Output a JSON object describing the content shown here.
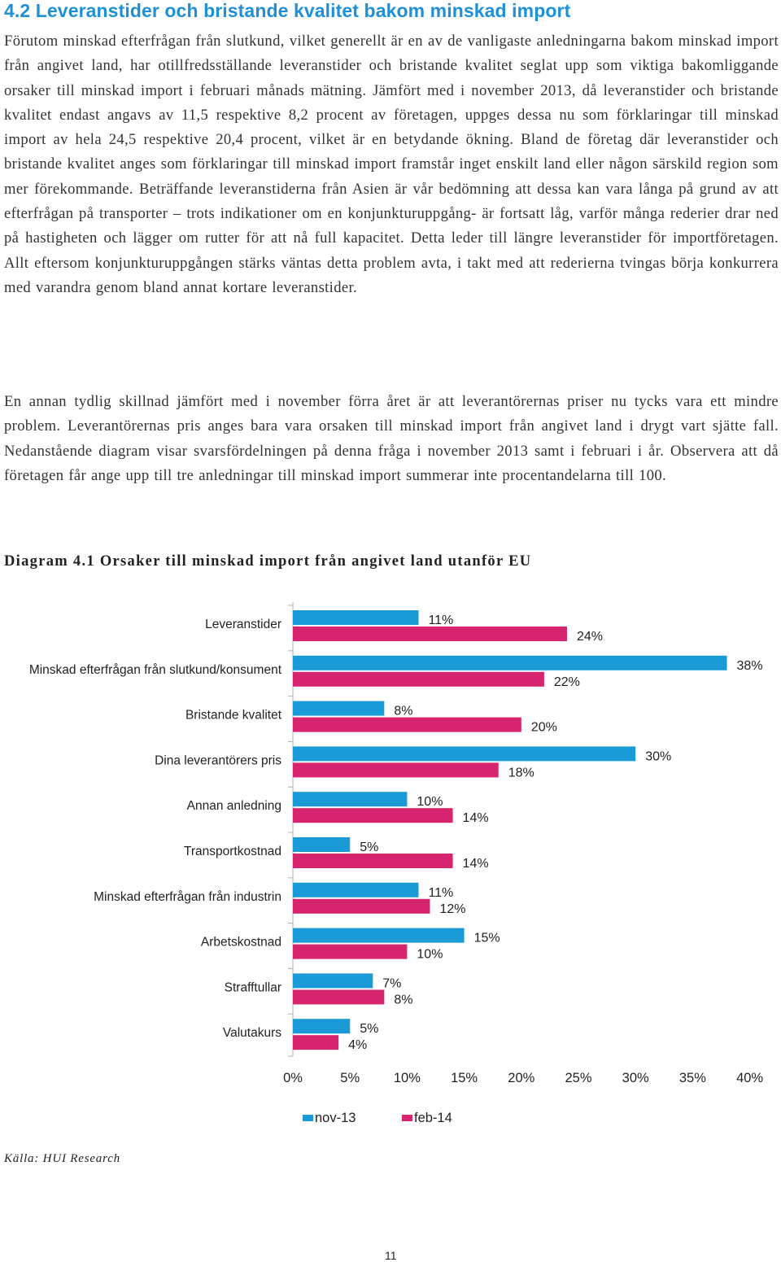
{
  "section": {
    "heading": "4.2 Leveranstider och bristande kvalitet bakom minskad import",
    "paragraphs": [
      "Förutom minskad efterfrågan från slutkund, vilket generellt är en av de vanligaste anledningarna bakom minskad import från angivet land, har otillfredsställande leveranstider och bristande kvalitet seglat upp som viktiga bakomliggande orsaker till minskad import i februari månads mätning. Jämfört med i november 2013, då leveranstider och bristande kvalitet endast angavs av 11,5 respektive 8,2 procent av företagen, uppges dessa nu som förklaringar till minskad import av hela 24,5 respektive 20,4 procent, vilket är en betydande ökning. Bland de företag där leveranstider och bristande kvalitet anges som förklaringar till minskad import framstår inget enskilt land eller någon särskild region som mer förekommande. Beträffande leveranstiderna från Asien är vår bedömning att dessa kan vara långa på grund av att efterfrågan på transporter – trots indikationer om en konjunkturuppgång- är fortsatt låg, varför många rederier drar ned på hastigheten och lägger om rutter för att nå full kapacitet. Detta leder till längre leveranstider för importföretagen. Allt eftersom konjunkturuppgången stärks väntas detta problem avta, i takt med att rederierna tvingas börja konkurrera med varandra genom bland annat kortare leveranstider.",
      "En annan tydlig skillnad jämfört med i november förra året är att leverantörernas priser nu tycks vara ett mindre problem. Leverantörernas pris anges bara vara orsaken till minskad import från angivet land i drygt vart sjätte fall. Nedanstående diagram visar svarsfördelningen på denna fråga i november 2013 samt i februari i år. Observera att då företagen får ange upp till tre anledningar till minskad import summerar inte procentandelarna till 100."
    ]
  },
  "diagram_title": "Diagram 4.1 Orsaker till minskad import från angivet land utanför EU",
  "source": "Källa: HUI Research",
  "page_number": "11",
  "chart_data": {
    "type": "bar",
    "orientation": "horizontal",
    "categories": [
      "Leveranstider",
      "Minskad efterfrågan från slutkund/konsument",
      "Bristande kvalitet",
      "Dina leverantörers pris",
      "Annan anledning",
      "Transportkostnad",
      "Minskad efterfrågan från industrin",
      "Arbetskostnad",
      "Strafftullar",
      "Valutakurs"
    ],
    "series": [
      {
        "name": "nov-13",
        "color": "#1a9ad6",
        "values": [
          11,
          38,
          8,
          30,
          10,
          5,
          11,
          15,
          7,
          5
        ],
        "labels": [
          "11%",
          "38%",
          "8%",
          "30%",
          "10%",
          "5%",
          "11%",
          "15%",
          "7%",
          "5%"
        ]
      },
      {
        "name": "feb-14",
        "color": "#d6246e",
        "values": [
          24,
          22,
          20,
          18,
          14,
          14,
          12,
          10,
          8,
          4
        ],
        "labels": [
          "24%",
          "22%",
          "20%",
          "18%",
          "14%",
          "14%",
          "12%",
          "10%",
          "8%",
          "4%"
        ]
      }
    ],
    "xlim": [
      0,
      40
    ],
    "x_ticks": [
      0,
      5,
      10,
      15,
      20,
      25,
      30,
      35,
      40
    ],
    "x_tick_labels": [
      "0%",
      "5%",
      "10%",
      "15%",
      "20%",
      "25%",
      "30%",
      "35%",
      "40%"
    ],
    "legend_position": "bottom",
    "grid": false
  }
}
